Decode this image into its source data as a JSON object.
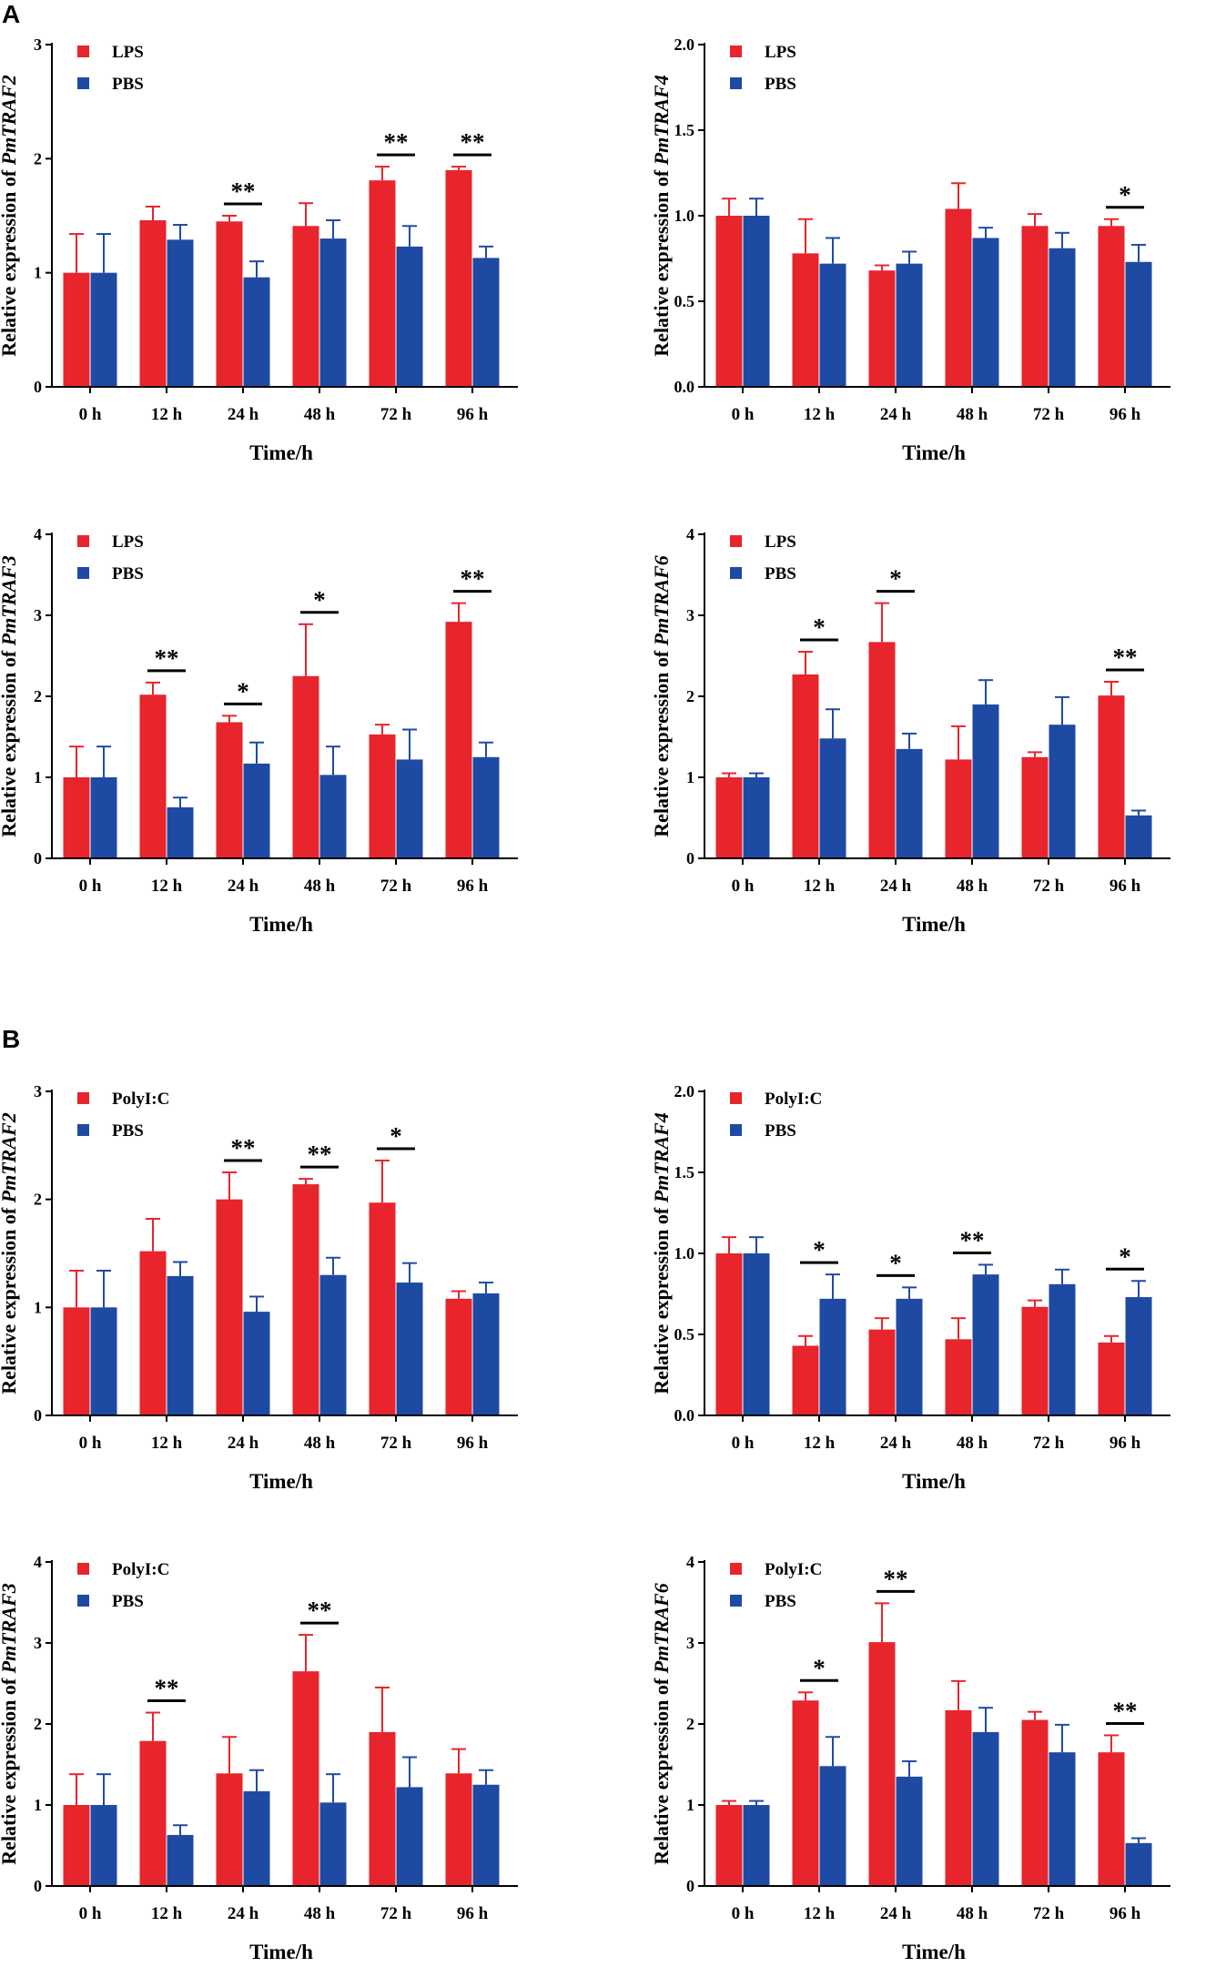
{
  "sections": [
    {
      "label": "A"
    },
    {
      "label": "B"
    }
  ],
  "colors": {
    "treatment": "#e8242c",
    "control": "#1f4aa3",
    "axis": "#000000"
  },
  "chart_data": [
    {
      "type": "bar",
      "section": "A",
      "treatment": "LPS",
      "control": "PBS",
      "ylabel_prefix": "Relative expression of ",
      "ylabel_gene": "PmTRAF2",
      "xlabel": "Time/h",
      "ylim": [
        0,
        3
      ],
      "yticks": [
        "0",
        "1",
        "2",
        "3"
      ],
      "categories": [
        "0 h",
        "12 h",
        "24 h",
        "48 h",
        "72 h",
        "96 h"
      ],
      "series": [
        {
          "name": "LPS",
          "values": [
            1.0,
            1.46,
            1.45,
            1.41,
            1.81,
            1.9
          ],
          "errors": [
            0.34,
            0.12,
            0.05,
            0.2,
            0.12,
            0.03
          ]
        },
        {
          "name": "PBS",
          "values": [
            1.0,
            1.29,
            0.96,
            1.3,
            1.23,
            1.13
          ],
          "errors": [
            0.34,
            0.13,
            0.14,
            0.16,
            0.18,
            0.1
          ]
        }
      ],
      "significance": [
        {
          "category": "24 h",
          "label": "**"
        },
        {
          "category": "72 h",
          "label": "**"
        },
        {
          "category": "96 h",
          "label": "**"
        }
      ]
    },
    {
      "type": "bar",
      "section": "A",
      "treatment": "LPS",
      "control": "PBS",
      "ylabel_prefix": "Relative expression of ",
      "ylabel_gene": "PmTRAF4",
      "xlabel": "Time/h",
      "ylim": [
        0,
        2
      ],
      "yticks": [
        "0.0",
        "0.5",
        "1.0",
        "1.5",
        "2.0"
      ],
      "categories": [
        "0 h",
        "12 h",
        "24 h",
        "48 h",
        "72 h",
        "96 h"
      ],
      "series": [
        {
          "name": "LPS",
          "values": [
            1.0,
            0.78,
            0.68,
            1.04,
            0.94,
            0.94
          ],
          "errors": [
            0.1,
            0.2,
            0.03,
            0.15,
            0.07,
            0.04
          ]
        },
        {
          "name": "PBS",
          "values": [
            1.0,
            0.72,
            0.72,
            0.87,
            0.81,
            0.73
          ],
          "errors": [
            0.1,
            0.15,
            0.07,
            0.06,
            0.09,
            0.1
          ]
        }
      ],
      "significance": [
        {
          "category": "96 h",
          "label": "*"
        }
      ]
    },
    {
      "type": "bar",
      "section": "A",
      "treatment": "LPS",
      "control": "PBS",
      "ylabel_prefix": "Relative expression of ",
      "ylabel_gene": "PmTRAF3",
      "xlabel": "Time/h",
      "ylim": [
        0,
        4
      ],
      "yticks": [
        "0",
        "1",
        "2",
        "3",
        "4"
      ],
      "categories": [
        "0 h",
        "12 h",
        "24 h",
        "48 h",
        "72 h",
        "96 h"
      ],
      "series": [
        {
          "name": "LPS",
          "values": [
            1.0,
            2.02,
            1.68,
            2.25,
            1.53,
            2.92
          ],
          "errors": [
            0.38,
            0.15,
            0.08,
            0.64,
            0.12,
            0.23
          ]
        },
        {
          "name": "PBS",
          "values": [
            1.0,
            0.63,
            1.17,
            1.03,
            1.22,
            1.25
          ],
          "errors": [
            0.38,
            0.12,
            0.26,
            0.35,
            0.37,
            0.18
          ]
        }
      ],
      "significance": [
        {
          "category": "12 h",
          "label": "**"
        },
        {
          "category": "24 h",
          "label": "*"
        },
        {
          "category": "48 h",
          "label": "*"
        },
        {
          "category": "96 h",
          "label": "**"
        }
      ]
    },
    {
      "type": "bar",
      "section": "A",
      "treatment": "LPS",
      "control": "PBS",
      "ylabel_prefix": "Relative expression of ",
      "ylabel_gene": "PmTRAF6",
      "xlabel": "Time/h",
      "ylim": [
        0,
        4
      ],
      "yticks": [
        "0",
        "1",
        "2",
        "3",
        "4"
      ],
      "categories": [
        "0 h",
        "12 h",
        "24 h",
        "48 h",
        "72 h",
        "96 h"
      ],
      "series": [
        {
          "name": "LPS",
          "values": [
            1.0,
            2.27,
            2.67,
            1.22,
            1.25,
            2.01
          ],
          "errors": [
            0.05,
            0.28,
            0.48,
            0.41,
            0.06,
            0.17
          ]
        },
        {
          "name": "PBS",
          "values": [
            1.0,
            1.48,
            1.35,
            1.9,
            1.65,
            0.53
          ],
          "errors": [
            0.05,
            0.36,
            0.19,
            0.3,
            0.34,
            0.06
          ]
        }
      ],
      "significance": [
        {
          "category": "12 h",
          "label": "*"
        },
        {
          "category": "24 h",
          "label": "*"
        },
        {
          "category": "96 h",
          "label": "**"
        }
      ]
    },
    {
      "type": "bar",
      "section": "B",
      "treatment": "PolyI:C",
      "control": "PBS",
      "ylabel_prefix": "Relative expression of ",
      "ylabel_gene": "PmTRAF2",
      "xlabel": "Time/h",
      "ylim": [
        0,
        3
      ],
      "yticks": [
        "0",
        "1",
        "2",
        "3"
      ],
      "categories": [
        "0 h",
        "12 h",
        "24 h",
        "48 h",
        "72 h",
        "96 h"
      ],
      "series": [
        {
          "name": "PolyI:C",
          "values": [
            1.0,
            1.52,
            2.0,
            2.14,
            1.97,
            1.08
          ],
          "errors": [
            0.34,
            0.3,
            0.25,
            0.05,
            0.39,
            0.07
          ]
        },
        {
          "name": "PBS",
          "values": [
            1.0,
            1.29,
            0.96,
            1.3,
            1.23,
            1.13
          ],
          "errors": [
            0.34,
            0.13,
            0.14,
            0.16,
            0.18,
            0.1
          ]
        }
      ],
      "significance": [
        {
          "category": "24 h",
          "label": "**"
        },
        {
          "category": "48 h",
          "label": "**"
        },
        {
          "category": "72 h",
          "label": "*"
        }
      ]
    },
    {
      "type": "bar",
      "section": "B",
      "treatment": "PolyI:C",
      "control": "PBS",
      "ylabel_prefix": "Relative expression of ",
      "ylabel_gene": "PmTRAF4",
      "xlabel": "Time/h",
      "ylim": [
        0,
        2
      ],
      "yticks": [
        "0.0",
        "0.5",
        "1.0",
        "1.5",
        "2.0"
      ],
      "categories": [
        "0 h",
        "12 h",
        "24 h",
        "48 h",
        "72 h",
        "96 h"
      ],
      "series": [
        {
          "name": "PolyI:C",
          "values": [
            1.0,
            0.43,
            0.53,
            0.47,
            0.67,
            0.45
          ],
          "errors": [
            0.1,
            0.06,
            0.07,
            0.13,
            0.04,
            0.04
          ]
        },
        {
          "name": "PBS",
          "values": [
            1.0,
            0.72,
            0.72,
            0.87,
            0.81,
            0.73
          ],
          "errors": [
            0.1,
            0.15,
            0.07,
            0.06,
            0.09,
            0.1
          ]
        }
      ],
      "significance": [
        {
          "category": "12 h",
          "label": "*"
        },
        {
          "category": "24 h",
          "label": "*"
        },
        {
          "category": "48 h",
          "label": "**"
        },
        {
          "category": "96 h",
          "label": "*"
        }
      ]
    },
    {
      "type": "bar",
      "section": "B",
      "treatment": "PolyI:C",
      "control": "PBS",
      "ylabel_prefix": "Relative expression of ",
      "ylabel_gene": "PmTRAF3",
      "xlabel": "Time/h",
      "ylim": [
        0,
        4
      ],
      "yticks": [
        "0",
        "1",
        "2",
        "3",
        "4"
      ],
      "categories": [
        "0 h",
        "12 h",
        "24 h",
        "48 h",
        "72 h",
        "96 h"
      ],
      "series": [
        {
          "name": "PolyI:C",
          "values": [
            1.0,
            1.79,
            1.39,
            2.65,
            1.9,
            1.39
          ],
          "errors": [
            0.38,
            0.35,
            0.45,
            0.45,
            0.55,
            0.3
          ]
        },
        {
          "name": "PBS",
          "values": [
            1.0,
            0.63,
            1.17,
            1.03,
            1.22,
            1.25
          ],
          "errors": [
            0.38,
            0.12,
            0.26,
            0.35,
            0.37,
            0.18
          ]
        }
      ],
      "significance": [
        {
          "category": "12 h",
          "label": "**"
        },
        {
          "category": "48 h",
          "label": "**"
        }
      ]
    },
    {
      "type": "bar",
      "section": "B",
      "treatment": "PolyI:C",
      "control": "PBS",
      "ylabel_prefix": "Relative expression of ",
      "ylabel_gene": "PmTRAF6",
      "xlabel": "Time/h",
      "ylim": [
        0,
        4
      ],
      "yticks": [
        "0",
        "1",
        "2",
        "3",
        "4"
      ],
      "categories": [
        "0 h",
        "12 h",
        "24 h",
        "48 h",
        "72 h",
        "96 h"
      ],
      "series": [
        {
          "name": "PolyI:C",
          "values": [
            1.0,
            2.29,
            3.01,
            2.17,
            2.05,
            1.65
          ],
          "errors": [
            0.05,
            0.1,
            0.48,
            0.36,
            0.1,
            0.21
          ]
        },
        {
          "name": "PBS",
          "values": [
            1.0,
            1.48,
            1.35,
            1.9,
            1.65,
            0.53
          ],
          "errors": [
            0.05,
            0.36,
            0.19,
            0.3,
            0.34,
            0.06
          ]
        }
      ],
      "significance": [
        {
          "category": "12 h",
          "label": "*"
        },
        {
          "category": "24 h",
          "label": "**"
        },
        {
          "category": "96 h",
          "label": "**"
        }
      ]
    }
  ]
}
